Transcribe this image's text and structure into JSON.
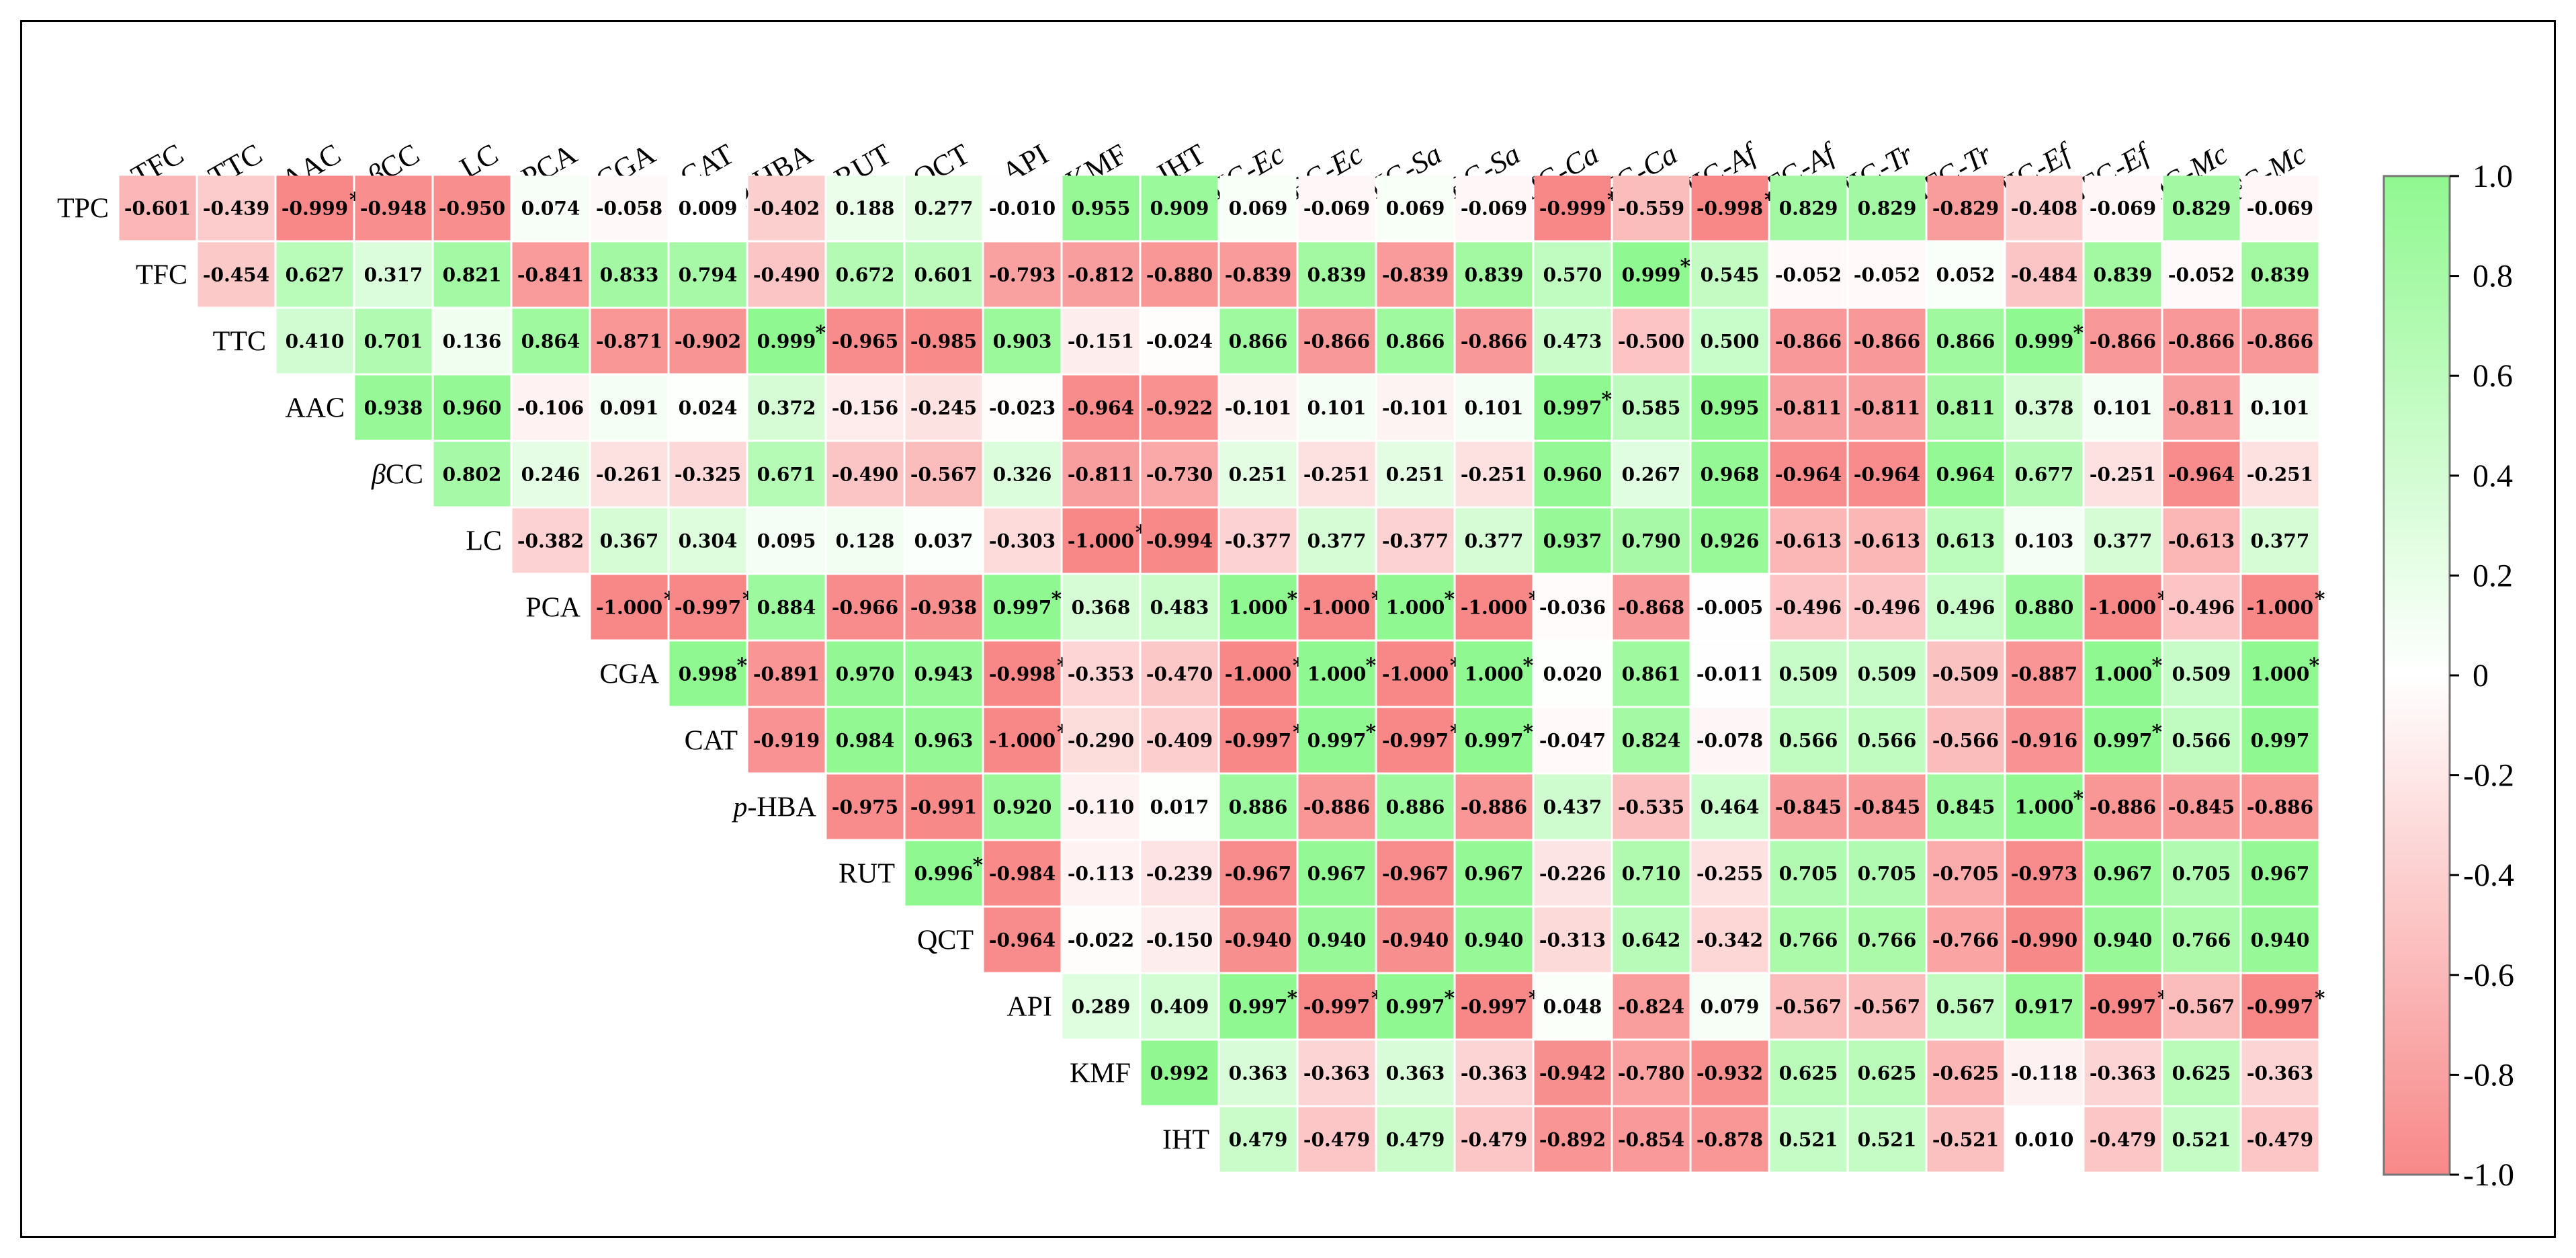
{
  "chart_data": {
    "type": "heatmap",
    "title": "",
    "columns": [
      "TFC",
      "TTC",
      "AAC",
      "βCC",
      "LC",
      "PCA",
      "CGA",
      "CAT",
      "p-HBA",
      "RUT",
      "QCT",
      "API",
      "KMF",
      "IHT",
      "MIC-Ec",
      "MBC-Ec",
      "MIC-Sa",
      "MBC-Sa",
      "MIC-Ca",
      "MFC-Ca",
      "MIC-Af",
      "MFC-Af",
      "MIC-Tr",
      "MFC-Tr",
      "MIC-Ef",
      "MFC-Ef",
      "MIC-Mc",
      "MFC-Mc"
    ],
    "rows": [
      {
        "label": "TPC",
        "start": 0,
        "values": [
          "-0.601",
          "-0.439",
          "-0.999",
          "-0.948",
          "-0.950",
          "0.074",
          "-0.058",
          "0.009",
          "-0.402",
          "0.188",
          "0.277",
          "-0.010",
          "0.955",
          "0.909",
          "0.069",
          "-0.069",
          "0.069",
          "-0.069",
          "-0.999",
          "-0.559",
          "-0.998",
          "0.829",
          "0.829",
          "-0.829",
          "-0.408",
          "-0.069",
          "0.829",
          "-0.069"
        ],
        "sig": [
          2,
          18,
          20
        ]
      },
      {
        "label": "TFC",
        "start": 1,
        "values": [
          "-0.454",
          "0.627",
          "0.317",
          "0.821",
          "-0.841",
          "0.833",
          "0.794",
          "-0.490",
          "0.672",
          "0.601",
          "-0.793",
          "-0.812",
          "-0.880",
          "-0.839",
          "0.839",
          "-0.839",
          "0.839",
          "0.570",
          "0.999",
          "0.545",
          "-0.052",
          "-0.052",
          "0.052",
          "-0.484",
          "0.839",
          "-0.052",
          "0.839"
        ],
        "sig": [
          19
        ]
      },
      {
        "label": "TTC",
        "start": 2,
        "values": [
          "0.410",
          "0.701",
          "0.136",
          "0.864",
          "-0.871",
          "-0.902",
          "0.999",
          "-0.965",
          "-0.985",
          "0.903",
          "-0.151",
          "-0.024",
          "0.866",
          "-0.866",
          "0.866",
          "-0.866",
          "0.473",
          "-0.500",
          "0.500",
          "-0.866",
          "-0.866",
          "0.866",
          "0.999",
          "-0.866",
          "-0.866",
          "-0.866"
        ],
        "sig": [
          8,
          24
        ]
      },
      {
        "label": "AAC",
        "start": 3,
        "values": [
          "0.938",
          "0.960",
          "-0.106",
          "0.091",
          "0.024",
          "0.372",
          "-0.156",
          "-0.245",
          "-0.023",
          "-0.964",
          "-0.922",
          "-0.101",
          "0.101",
          "-0.101",
          "0.101",
          "0.997",
          "0.585",
          "0.995",
          "-0.811",
          "-0.811",
          "0.811",
          "0.378",
          "0.101",
          "-0.811",
          "0.101"
        ],
        "sig": [
          18
        ]
      },
      {
        "label": "βCC",
        "start": 4,
        "values": [
          "0.802",
          "0.246",
          "-0.261",
          "-0.325",
          "0.671",
          "-0.490",
          "-0.567",
          "0.326",
          "-0.811",
          "-0.730",
          "0.251",
          "-0.251",
          "0.251",
          "-0.251",
          "0.960",
          "0.267",
          "0.968",
          "-0.964",
          "-0.964",
          "0.964",
          "0.677",
          "-0.251",
          "-0.964",
          "-0.251"
        ],
        "sig": []
      },
      {
        "label": "LC",
        "start": 5,
        "values": [
          "-0.382",
          "0.367",
          "0.304",
          "0.095",
          "0.128",
          "0.037",
          "-0.303",
          "-1.000",
          "-0.994",
          "-0.377",
          "0.377",
          "-0.377",
          "0.377",
          "0.937",
          "0.790",
          "0.926",
          "-0.613",
          "-0.613",
          "0.613",
          "0.103",
          "0.377",
          "-0.613",
          "0.377"
        ],
        "sig": [
          12
        ]
      },
      {
        "label": "PCA",
        "start": 6,
        "values": [
          "-1.000",
          "-0.997",
          "0.884",
          "-0.966",
          "-0.938",
          "0.997",
          "0.368",
          "0.483",
          "1.000",
          "-1.000",
          "1.000",
          "-1.000",
          "-0.036",
          "-0.868",
          "-0.005",
          "-0.496",
          "-0.496",
          "0.496",
          "0.880",
          "-1.000",
          "-0.496",
          "-1.000"
        ],
        "sig": [
          6,
          7,
          11,
          14,
          15,
          16,
          17,
          25,
          27
        ]
      },
      {
        "label": "CGA",
        "start": 7,
        "values": [
          "0.998",
          "-0.891",
          "0.970",
          "0.943",
          "-0.998",
          "-0.353",
          "-0.470",
          "-1.000",
          "1.000",
          "-1.000",
          "1.000",
          "0.020",
          "0.861",
          "-0.011",
          "0.509",
          "0.509",
          "-0.509",
          "-0.887",
          "1.000",
          "0.509",
          "1.000"
        ],
        "sig": [
          7,
          11,
          14,
          15,
          16,
          17,
          25,
          27
        ]
      },
      {
        "label": "CAT",
        "start": 8,
        "values": [
          "-0.919",
          "0.984",
          "0.963",
          "-1.000",
          "-0.290",
          "-0.409",
          "-0.997",
          "0.997",
          "-0.997",
          "0.997",
          "-0.047",
          "0.824",
          "-0.078",
          "0.566",
          "0.566",
          "-0.566",
          "-0.916",
          "0.997",
          "0.566",
          "0.997"
        ],
        "sig": [
          11,
          14,
          15,
          16,
          17,
          25
        ]
      },
      {
        "label": "p-HBA",
        "italic_prefix": "p",
        "start": 9,
        "values": [
          "-0.975",
          "-0.991",
          "0.920",
          "-0.110",
          "0.017",
          "0.886",
          "-0.886",
          "0.886",
          "-0.886",
          "0.437",
          "-0.535",
          "0.464",
          "-0.845",
          "-0.845",
          "0.845",
          "1.000",
          "-0.886",
          "-0.845",
          "-0.886"
        ],
        "sig": [
          24
        ]
      },
      {
        "label": "RUT",
        "start": 10,
        "values": [
          "0.996",
          "-0.984",
          "-0.113",
          "-0.239",
          "-0.967",
          "0.967",
          "-0.967",
          "0.967",
          "-0.226",
          "0.710",
          "-0.255",
          "0.705",
          "0.705",
          "-0.705",
          "-0.973",
          "0.967",
          "0.705",
          "0.967"
        ],
        "sig": [
          10
        ]
      },
      {
        "label": "QCT",
        "start": 11,
        "values": [
          "-0.964",
          "-0.022",
          "-0.150",
          "-0.940",
          "0.940",
          "-0.940",
          "0.940",
          "-0.313",
          "0.642",
          "-0.342",
          "0.766",
          "0.766",
          "-0.766",
          "-0.990",
          "0.940",
          "0.766",
          "0.940"
        ],
        "sig": []
      },
      {
        "label": "API",
        "start": 12,
        "values": [
          "0.289",
          "0.409",
          "0.997",
          "-0.997",
          "0.997",
          "-0.997",
          "0.048",
          "-0.824",
          "0.079",
          "-0.567",
          "-0.567",
          "0.567",
          "0.917",
          "-0.997",
          "-0.567",
          "-0.997"
        ],
        "sig": [
          14,
          15,
          16,
          17,
          25,
          27
        ]
      },
      {
        "label": "KMF",
        "start": 13,
        "values": [
          "0.992",
          "0.363",
          "-0.363",
          "0.363",
          "-0.363",
          "-0.942",
          "-0.780",
          "-0.932",
          "0.625",
          "0.625",
          "-0.625",
          "-0.118",
          "-0.363",
          "0.625",
          "-0.363"
        ],
        "sig": []
      },
      {
        "label": "IHT",
        "start": 14,
        "values": [
          "0.479",
          "-0.479",
          "0.479",
          "-0.479",
          "-0.892",
          "-0.854",
          "-0.878",
          "0.521",
          "0.521",
          "-0.521",
          "0.010",
          "-0.479",
          "0.521",
          "-0.479"
        ],
        "sig": []
      }
    ],
    "significance_marker": "*",
    "colorbar": {
      "min": -1.0,
      "max": 1.0,
      "ticks": [
        "1.0",
        "0.8",
        "0.6",
        "0.4",
        "0.2",
        "0",
        "-0.2",
        "-0.4",
        "-0.6",
        "-0.8",
        "-1.0"
      ],
      "tick_values": [
        1.0,
        0.8,
        0.6,
        0.4,
        0.2,
        0,
        -0.2,
        -0.4,
        -0.6,
        -0.8,
        -1.0
      ],
      "positive_color": "#90f890",
      "negative_color": "#f88888",
      "zero_color": "#ffffff"
    }
  }
}
